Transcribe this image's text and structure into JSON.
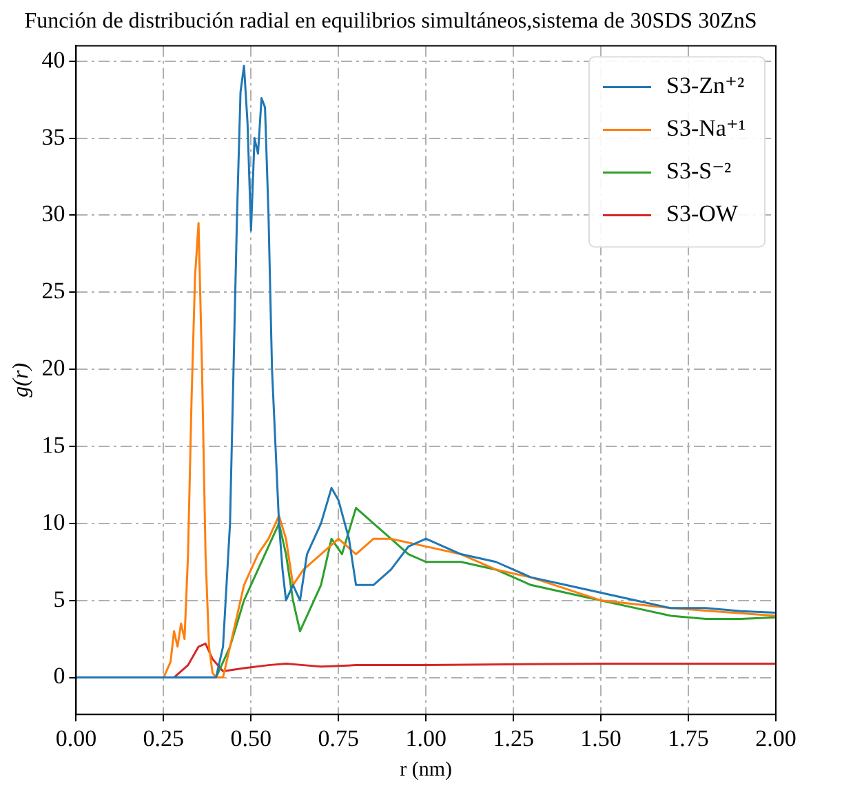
{
  "chart_data": {
    "type": "line",
    "title": "Función de distribución radial en equilibrios simultáneos,sistema de 30SDS 30ZnS",
    "xlabel": "r (nm)",
    "ylabel": "g(r)",
    "xlim": [
      0,
      2
    ],
    "ylim": [
      -2.4,
      41
    ],
    "xticks": [
      {
        "value": 0,
        "label": "0.00"
      },
      0.25,
      {
        "value": 0.5,
        "label": "0.50"
      },
      0.75,
      {
        "value": 1,
        "label": "1.00"
      },
      1.25,
      {
        "value": 1.5,
        "label": "1.50"
      },
      1.75,
      {
        "value": 2,
        "label": "2.00"
      }
    ],
    "yticks": [
      0,
      5,
      10,
      15,
      20,
      25,
      30,
      35,
      40
    ],
    "grid": true,
    "legend": "top right",
    "marker": "none",
    "line_style": "solid",
    "series": [
      {
        "name": "S3-Zn⁺²",
        "color": "#1f77b4",
        "x": [
          0,
          0.4,
          0.42,
          0.44,
          0.46,
          0.47,
          0.48,
          0.49,
          0.5,
          0.51,
          0.52,
          0.53,
          0.54,
          0.55,
          0.56,
          0.57,
          0.58,
          0.59,
          0.6,
          0.62,
          0.64,
          0.66,
          0.7,
          0.73,
          0.75,
          0.78,
          0.8,
          0.85,
          0.9,
          0.95,
          1.0,
          1.1,
          1.2,
          1.3,
          1.4,
          1.5,
          1.6,
          1.7,
          1.8,
          1.9,
          2.0
        ],
        "values": [
          0,
          0,
          2,
          10,
          30,
          38,
          39.7,
          36,
          29,
          35,
          34,
          37.6,
          37,
          30,
          20,
          15,
          10,
          7,
          5,
          6,
          5,
          8,
          10,
          12.3,
          11.5,
          9,
          6,
          6,
          7,
          8.5,
          9,
          8,
          7.5,
          6.5,
          6,
          5.5,
          5,
          4.5,
          4.5,
          4.3,
          4.2
        ]
      },
      {
        "name": "S3-Na⁺¹",
        "color": "#ff7f0e",
        "x": [
          0,
          0.25,
          0.27,
          0.28,
          0.29,
          0.3,
          0.31,
          0.32,
          0.33,
          0.34,
          0.35,
          0.36,
          0.37,
          0.38,
          0.39,
          0.4,
          0.42,
          0.44,
          0.48,
          0.52,
          0.55,
          0.58,
          0.6,
          0.62,
          0.65,
          0.7,
          0.75,
          0.8,
          0.85,
          0.9,
          1.0,
          1.1,
          1.2,
          1.3,
          1.5,
          1.7,
          2.0
        ],
        "values": [
          0,
          0,
          1,
          3,
          2,
          3.5,
          2.5,
          8,
          18,
          26,
          29.5,
          20,
          8,
          2,
          0.3,
          0,
          0,
          2,
          6,
          8,
          9,
          10.5,
          9,
          6,
          7,
          8,
          9,
          8,
          9,
          9,
          8.5,
          8,
          7,
          6.5,
          5,
          4.5,
          4
        ]
      },
      {
        "name": "S3-S⁻²",
        "color": "#2ca02c",
        "x": [
          0,
          0.4,
          0.44,
          0.48,
          0.52,
          0.56,
          0.58,
          0.6,
          0.62,
          0.64,
          0.66,
          0.7,
          0.73,
          0.76,
          0.8,
          0.85,
          0.9,
          0.95,
          1.0,
          1.1,
          1.2,
          1.3,
          1.4,
          1.5,
          1.6,
          1.7,
          1.8,
          1.9,
          2.0
        ],
        "values": [
          0,
          0,
          2,
          5,
          7,
          9,
          10,
          8,
          5,
          3,
          4,
          6,
          9,
          8,
          11,
          10,
          9,
          8,
          7.5,
          7.5,
          7,
          6,
          5.5,
          5,
          4.5,
          4,
          3.8,
          3.8,
          3.9
        ]
      },
      {
        "name": "S3-OW",
        "color": "#d62728",
        "x": [
          0,
          0.28,
          0.32,
          0.35,
          0.37,
          0.39,
          0.42,
          0.48,
          0.55,
          0.6,
          0.65,
          0.7,
          0.8,
          1.0,
          1.5,
          2.0
        ],
        "values": [
          0,
          0,
          0.8,
          2,
          2.2,
          1.2,
          0.4,
          0.6,
          0.8,
          0.9,
          0.8,
          0.7,
          0.8,
          0.8,
          0.9,
          0.9
        ]
      }
    ]
  }
}
